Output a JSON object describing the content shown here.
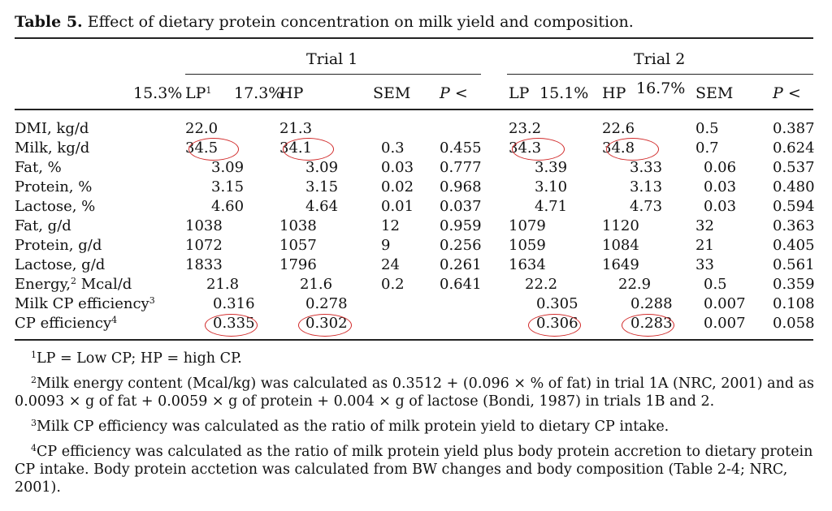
{
  "caption": {
    "label": "Table 5.",
    "text": " Effect of dietary protein concentration on milk yield and composition."
  },
  "groups": {
    "trial1": "Trial 1",
    "trial2": "Trial 2"
  },
  "headers": {
    "t1_lp_pct": "15.3%",
    "t1_lp": "LP",
    "t1_lp_sup": "1",
    "t1_hp_pct": "17.3%",
    "t1_hp": "HP",
    "t1_sem": "SEM",
    "t1_p": "P <",
    "t2_lp": "LP",
    "t2_lp_pct": "15.1%",
    "t2_hp": "HP",
    "t2_hp_pct": "16.7%",
    "t2_sem": "SEM",
    "t2_p": "P <"
  },
  "rows": [
    {
      "label": "DMI, kg/d",
      "sup": "",
      "v": [
        "22.0",
        "21.3",
        "",
        "",
        "23.2",
        "22.6",
        "0.5",
        "0.387"
      ]
    },
    {
      "label": "Milk, kg/d",
      "sup": "",
      "v": [
        "34.5",
        "34.1",
        "0.3",
        "0.455",
        "34.3",
        "34.8",
        "0.7",
        "0.624"
      ]
    },
    {
      "label": "Fat, %",
      "sup": "",
      "v": [
        "3.09",
        "3.09",
        "0.03",
        "0.777",
        "3.39",
        "3.33",
        "0.06",
        "0.537"
      ]
    },
    {
      "label": "Protein, %",
      "sup": "",
      "v": [
        "3.15",
        "3.15",
        "0.02",
        "0.968",
        "3.10",
        "3.13",
        "0.03",
        "0.480"
      ]
    },
    {
      "label": "Lactose, %",
      "sup": "",
      "v": [
        "4.60",
        "4.64",
        "0.01",
        "0.037",
        "4.71",
        "4.73",
        "0.03",
        "0.594"
      ]
    },
    {
      "label": "Fat, g/d",
      "sup": "",
      "v": [
        "1038",
        "1038",
        "12",
        "0.959",
        "1079",
        "1120",
        "32",
        "0.363"
      ]
    },
    {
      "label": "Protein, g/d",
      "sup": "",
      "v": [
        "1072",
        "1057",
        "9",
        "0.256",
        "1059",
        "1084",
        "21",
        "0.405"
      ]
    },
    {
      "label": "Lactose, g/d",
      "sup": "",
      "v": [
        "1833",
        "1796",
        "24",
        "0.261",
        "1634",
        "1649",
        "33",
        "0.561"
      ]
    },
    {
      "label": "Energy,",
      "sup": "2",
      "label_tail": " Mcal/d",
      "v": [
        "21.8",
        "21.6",
        "0.2",
        "0.641",
        "22.2",
        "22.9",
        "0.5",
        "0.359"
      ]
    },
    {
      "label": "Milk CP efficiency",
      "sup": "3",
      "v": [
        "0.316",
        "0.278",
        "",
        "",
        "0.305",
        "0.288",
        "0.007",
        "0.108"
      ]
    },
    {
      "label": "CP efficiency",
      "sup": "4",
      "v": [
        "0.335",
        "0.302",
        "",
        "",
        "0.306",
        "0.283",
        "0.007",
        "0.058"
      ]
    }
  ],
  "footnotes": {
    "f1_sup": "1",
    "f1": "LP = Low CP; HP = high CP.",
    "f2_sup": "2",
    "f2": "Milk energy content (Mcal/kg) was calculated as 0.3512 + (0.096 × % of fat) in trial 1A (NRC, 2001) and as 0.0093 × g of fat + 0.0059 × g of protein + 0.004 × g of lactose (Bondi, 1987) in trials 1B and 2.",
    "f3_sup": "3",
    "f3": "Milk CP efficiency was calculated as the ratio of milk protein yield to dietary CP intake.",
    "f4_sup": "4",
    "f4": "CP efficiency was calculated as the ratio of milk protein yield plus body protein accretion to dietary protein CP intake. Body protein acctetion was calculated from BW changes and body composition (Table 2-4; NRC, 2001)."
  },
  "colors": {
    "annotation": "#d12a2a",
    "rule": "#222222"
  }
}
